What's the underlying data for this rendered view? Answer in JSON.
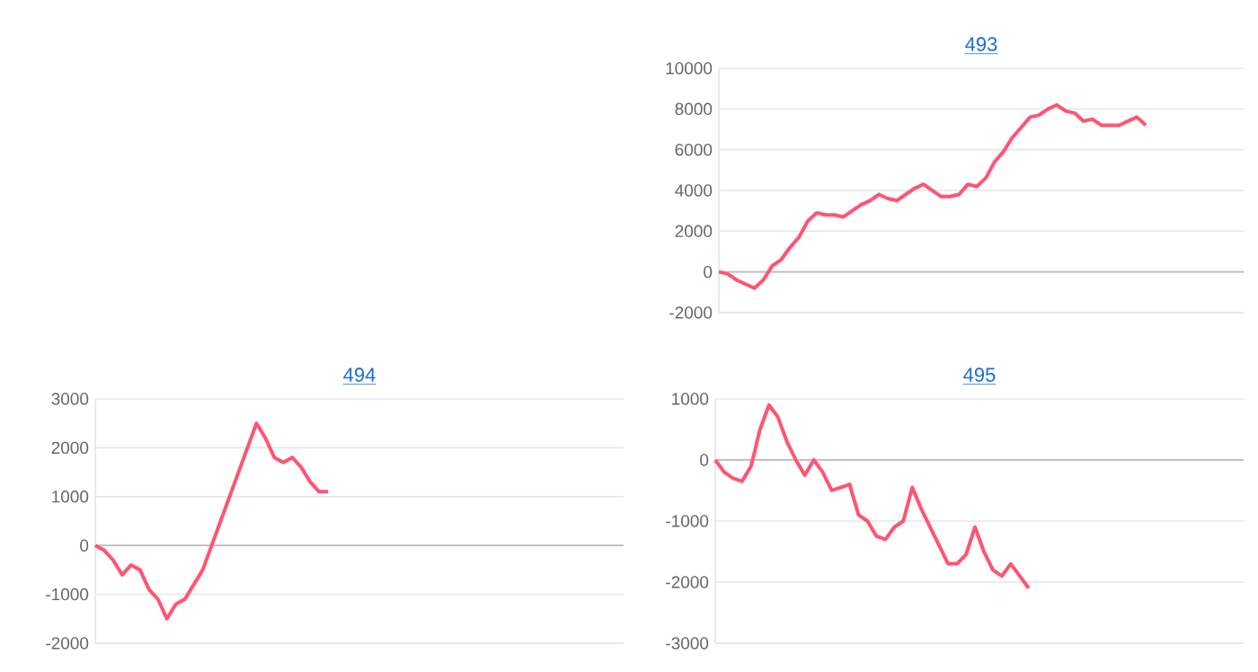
{
  "chart_data": [
    {
      "type": "line",
      "title": "493",
      "color": "#ff5472",
      "grid": "y",
      "tick_labels": "y",
      "ylim": [
        -2000,
        10000
      ],
      "yticks": [
        -2000,
        0,
        2000,
        4000,
        6000,
        8000,
        10000
      ],
      "categories": [
        null,
        null,
        null,
        null,
        null,
        null,
        null,
        null,
        null,
        null,
        null,
        null,
        null,
        null,
        null,
        null,
        null,
        null,
        null,
        null,
        null,
        null,
        null,
        null,
        null,
        null,
        null,
        null,
        null,
        null,
        null,
        null,
        null,
        null,
        null,
        null,
        null,
        null,
        null,
        null,
        null,
        null,
        null,
        null,
        null,
        null,
        null,
        null,
        null,
        null,
        null,
        null,
        null,
        null,
        null,
        null,
        null,
        null,
        null,
        null
      ],
      "values": [
        0,
        -100,
        -400,
        -600,
        -800,
        -400,
        300,
        600,
        1200,
        1700,
        2500,
        2900,
        2800,
        2800,
        2700,
        3000,
        3300,
        3500,
        3800,
        3600,
        3500,
        3800,
        4100,
        4300,
        4000,
        3700,
        3700,
        3800,
        4300,
        4200,
        4600,
        5400,
        5900,
        6600,
        7100,
        7600,
        7700,
        8000,
        8200,
        7900,
        7800,
        7400,
        7500,
        7200,
        7200,
        7200,
        7400,
        7600,
        7200,
        null,
        null,
        null,
        null,
        null,
        null,
        null,
        null,
        null,
        null,
        null
      ]
    },
    {
      "type": "line",
      "title": "494",
      "color": "#ff5472",
      "grid": "y",
      "tick_labels": "y",
      "ylim": [
        -2000,
        3000
      ],
      "yticks": [
        -2000,
        -1000,
        0,
        1000,
        2000,
        3000
      ],
      "categories": [
        null,
        null,
        null,
        null,
        null,
        null,
        null,
        null,
        null,
        null,
        null,
        null,
        null,
        null,
        null,
        null,
        null,
        null,
        null,
        null,
        null,
        null,
        null,
        null,
        null,
        null,
        null,
        null,
        null,
        null,
        null,
        null,
        null,
        null,
        null,
        null,
        null,
        null,
        null,
        null,
        null,
        null,
        null,
        null,
        null,
        null,
        null,
        null,
        null,
        null,
        null,
        null,
        null,
        null,
        null,
        null,
        null,
        null,
        null,
        null
      ],
      "values": [
        0,
        -100,
        -300,
        -600,
        -400,
        -500,
        -900,
        -1100,
        -1500,
        -1200,
        -1100,
        -800,
        -500,
        0,
        500,
        1000,
        1500,
        2000,
        2500,
        2200,
        1800,
        1700,
        1800,
        1600,
        1300,
        1100,
        1100,
        null,
        null,
        null,
        null,
        null,
        null,
        null,
        null,
        null,
        null,
        null,
        null,
        null,
        null,
        null,
        null,
        null,
        null,
        null,
        null,
        null,
        null,
        null,
        null,
        null,
        null,
        null,
        null,
        null,
        null,
        null,
        null,
        null
      ]
    },
    {
      "type": "line",
      "title": "495",
      "color": "#ff5472",
      "grid": "y",
      "tick_labels": "y",
      "ylim": [
        -3000,
        1000
      ],
      "yticks": [
        -3000,
        -2000,
        -1000,
        0,
        1000
      ],
      "categories": [
        null,
        null,
        null,
        null,
        null,
        null,
        null,
        null,
        null,
        null,
        null,
        null,
        null,
        null,
        null,
        null,
        null,
        null,
        null,
        null,
        null,
        null,
        null,
        null,
        null,
        null,
        null,
        null,
        null,
        null,
        null,
        null,
        null,
        null,
        null,
        null,
        null,
        null,
        null,
        null,
        null,
        null,
        null,
        null,
        null,
        null,
        null,
        null,
        null,
        null,
        null,
        null,
        null,
        null,
        null,
        null,
        null,
        null,
        null,
        null
      ],
      "values": [
        0,
        -200,
        -300,
        -350,
        -100,
        500,
        900,
        700,
        300,
        0,
        -250,
        0,
        -200,
        -500,
        -450,
        -400,
        -900,
        -1000,
        -1250,
        -1300,
        -1100,
        -1000,
        -450,
        -800,
        -1100,
        -1400,
        -1700,
        -1700,
        -1550,
        -1100,
        -1500,
        -1800,
        -1900,
        -1700,
        -1900,
        -2100,
        null,
        null,
        null,
        null,
        null,
        null,
        null,
        null,
        null,
        null,
        null,
        null,
        null,
        null,
        null,
        null,
        null,
        null,
        null,
        null,
        null,
        null,
        null,
        null
      ]
    }
  ]
}
